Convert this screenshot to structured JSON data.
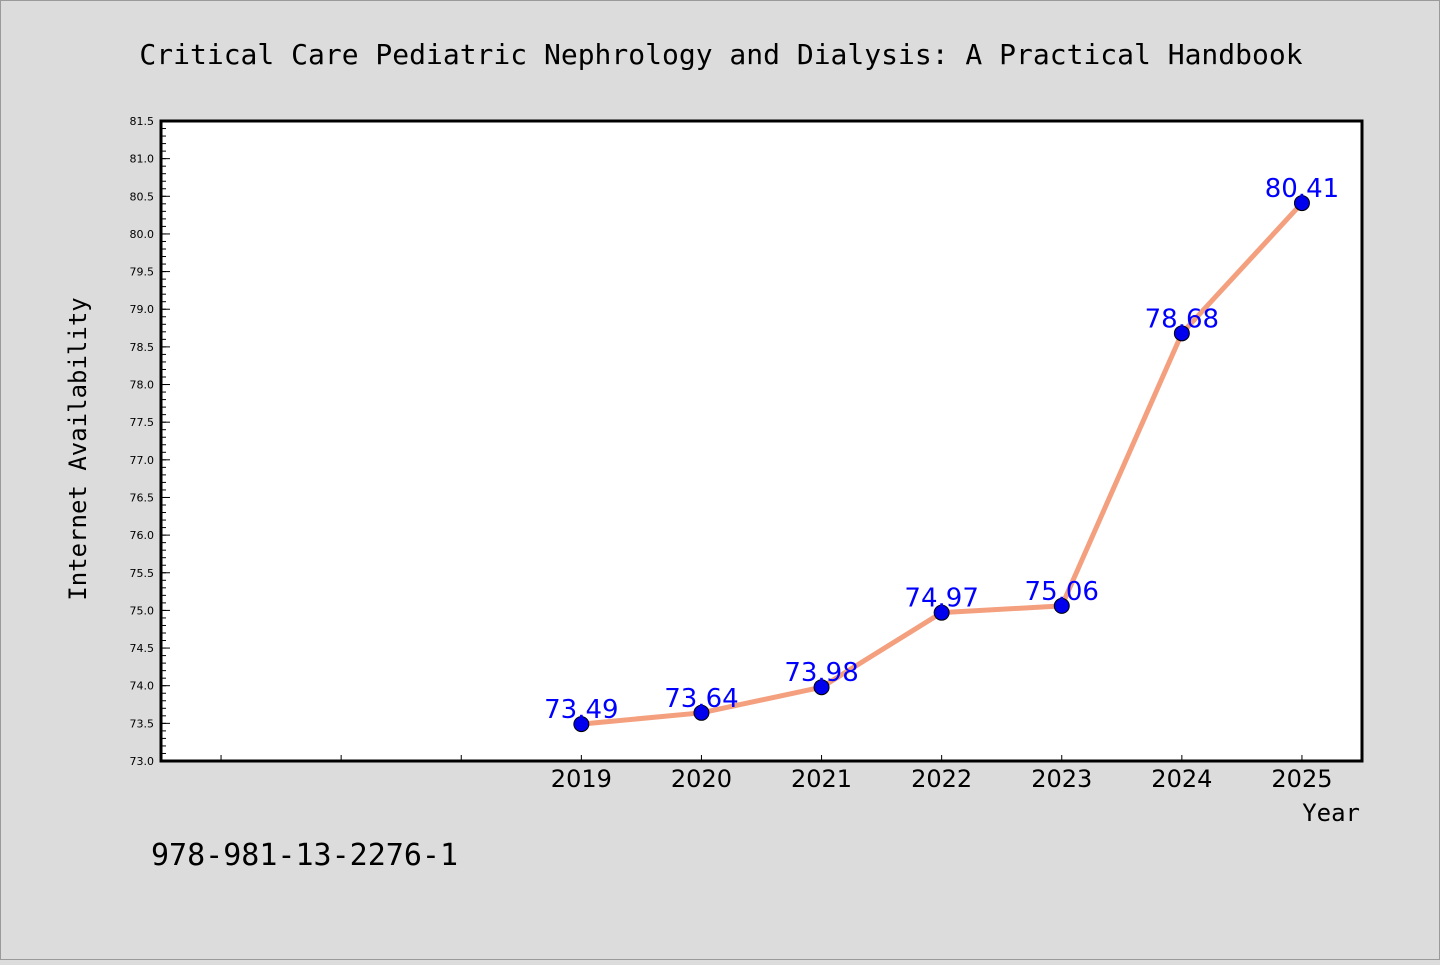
{
  "chart_data": {
    "type": "line",
    "title": "Critical Care Pediatric Nephrology and Dialysis: A Practical Handbook",
    "xlabel": "Year",
    "ylabel": "Internet Availability",
    "categories": [
      "2019",
      "2020",
      "2021",
      "2022",
      "2023",
      "2024",
      "2025"
    ],
    "values": [
      73.49,
      73.64,
      73.98,
      74.97,
      75.06,
      78.68,
      80.41
    ],
    "data_labels": [
      "73.49",
      "73.64",
      "73.98",
      "74.97",
      "75.06",
      "78.68",
      "80.41"
    ],
    "ylim": [
      73.0,
      81.5
    ],
    "y_ticks": [
      "73.0",
      "73.5",
      "74.0",
      "74.5",
      "75.0",
      "75.5",
      "76.0",
      "76.5",
      "77.0",
      "77.5",
      "78.0",
      "78.5",
      "79.0",
      "79.5",
      "80.0",
      "80.5",
      "81.0",
      "81.5"
    ],
    "grid": false,
    "line_color": "#f4a07f",
    "marker_color": "#0000ee",
    "label_color": "#0000ff"
  },
  "footer_text": "978-981-13-2276-1"
}
